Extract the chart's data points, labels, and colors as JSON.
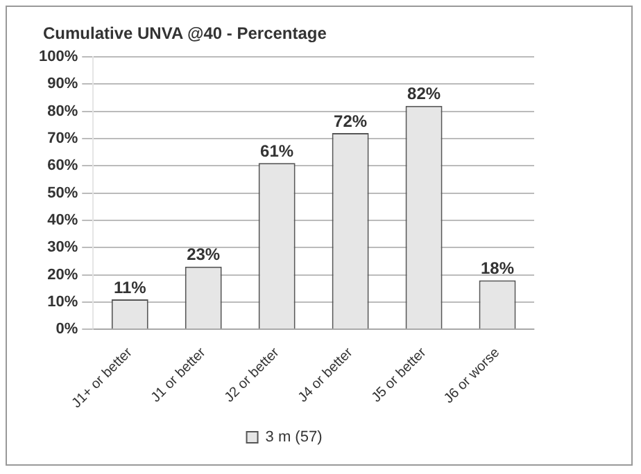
{
  "chart_data": {
    "type": "bar",
    "title": "Cumulative UNVA @40 - Percentage",
    "categories": [
      "J1+ or better",
      "J1 or better",
      "J2 or better",
      "J4 or better",
      "J5 or better",
      "J6 or worse"
    ],
    "series": [
      {
        "name": "3 m (57)",
        "color": "#e6e6e6",
        "values": [
          11,
          23,
          61,
          72,
          82,
          18
        ],
        "value_labels": [
          "11%",
          "23%",
          "61%",
          "72%",
          "82%",
          "18%"
        ]
      }
    ],
    "ylim": [
      0,
      100
    ],
    "yticks": [
      {
        "value": 0,
        "label": "0%"
      },
      {
        "value": 10,
        "label": "10%"
      },
      {
        "value": 20,
        "label": "20%"
      },
      {
        "value": 30,
        "label": "30%"
      },
      {
        "value": 40,
        "label": "40%"
      },
      {
        "value": 50,
        "label": "50%"
      },
      {
        "value": 60,
        "label": "60%"
      },
      {
        "value": 70,
        "label": "70%"
      },
      {
        "value": 80,
        "label": "80%"
      },
      {
        "value": 90,
        "label": "90%"
      },
      {
        "value": 100,
        "label": "100%"
      }
    ],
    "grid": "y",
    "legend": "bottom"
  }
}
